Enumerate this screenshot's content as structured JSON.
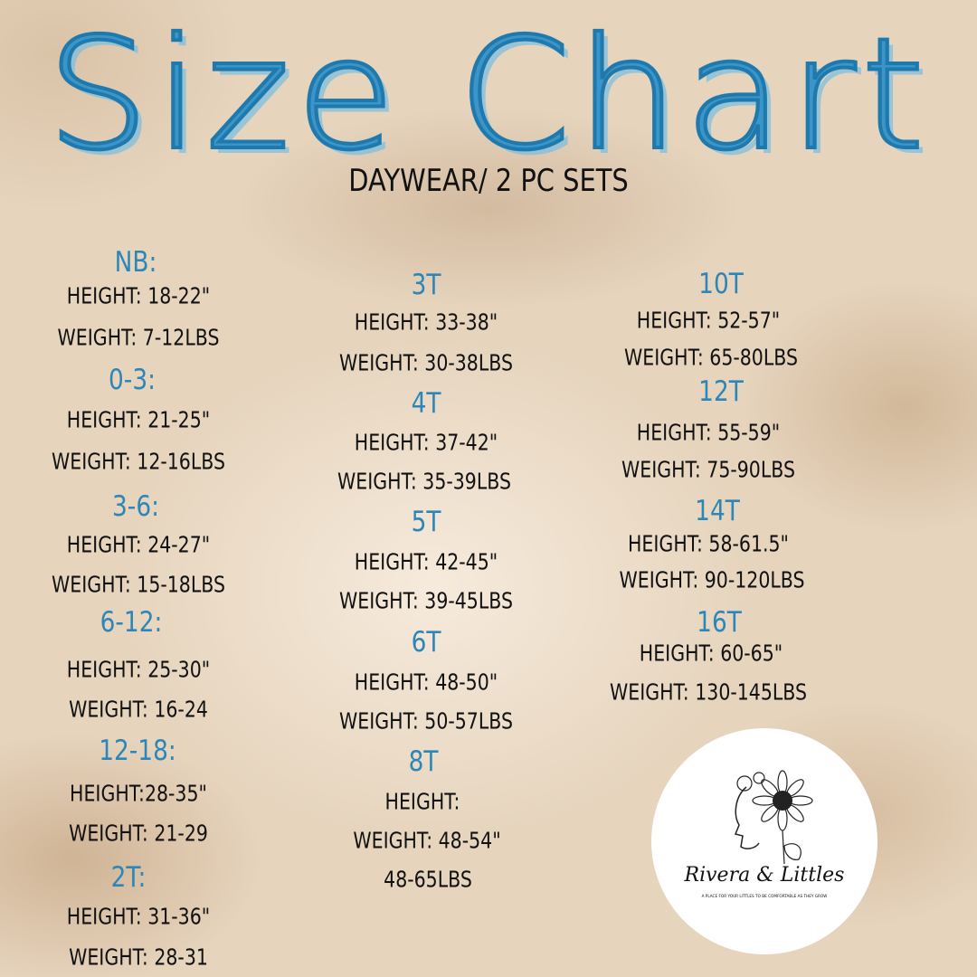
{
  "title": "Size Chart",
  "subtitle": "DAYWEAR/ 2 PC SETS",
  "colors": {
    "accent": "#2d86b8",
    "text": "#111111",
    "background": "#e6d4bd"
  },
  "columns": [
    {
      "sizes": [
        {
          "label": "NB:",
          "height": "HEIGHT: 18-22\"",
          "weight": "WEIGHT: 7-12LBS"
        },
        {
          "label": "0-3:",
          "height": "HEIGHT: 21-25\"",
          "weight": "WEIGHT: 12-16LBS"
        },
        {
          "label": "3-6:",
          "height": "HEIGHT: 24-27\"",
          "weight": "WEIGHT: 15-18LBS"
        },
        {
          "label": "6-12:",
          "height": "HEIGHT: 25-30\"",
          "weight": "WEIGHT: 16-24"
        },
        {
          "label": "12-18:",
          "height": "HEIGHT:28-35\"",
          "weight": "WEIGHT: 21-29"
        },
        {
          "label": "2T:",
          "height": "HEIGHT: 31-36\"",
          "weight": "WEIGHT: 28-31"
        }
      ]
    },
    {
      "sizes": [
        {
          "label": "3T",
          "height": "HEIGHT: 33-38\"",
          "weight": "WEIGHT: 30-38LBS"
        },
        {
          "label": "4T",
          "height": "HEIGHT: 37-42\"",
          "weight": "WEIGHT: 35-39LBS"
        },
        {
          "label": "5T",
          "height": "HEIGHT: 42-45\"",
          "weight": "WEIGHT: 39-45LBS"
        },
        {
          "label": "6T",
          "height": "HEIGHT: 48-50\"",
          "weight": "WEIGHT: 50-57LBS"
        },
        {
          "label": "8T",
          "height": "HEIGHT:",
          "weight": "WEIGHT: 48-54\"",
          "extra": "48-65LBS"
        }
      ]
    },
    {
      "sizes": [
        {
          "label": "10T",
          "height": "HEIGHT: 52-57\"",
          "weight": "WEIGHT: 65-80LBS"
        },
        {
          "label": "12T",
          "height": "HEIGHT: 55-59\"",
          "weight": "WEIGHT: 75-90LBS"
        },
        {
          "label": "14T",
          "height": "HEIGHT: 58-61.5\"",
          "weight": "WEIGHT: 90-120LBS"
        },
        {
          "label": "16T",
          "height": "HEIGHT: 60-65\"",
          "weight": "WEIGHT: 130-145LBS"
        }
      ]
    }
  ],
  "logo": {
    "brand": "Rivera & Littles",
    "tagline": "A PLACE FOR YOUR LITTLES TO BE COMFORTABLE AS THEY GROW",
    "icon": "sunflower-woman-icon"
  }
}
